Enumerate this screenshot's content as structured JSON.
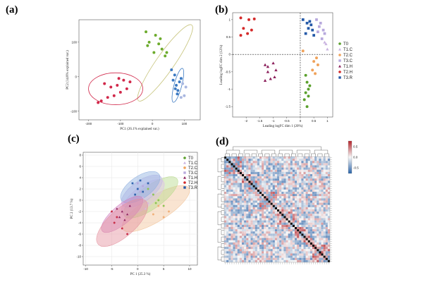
{
  "panels": {
    "a": "(a)",
    "b": "(b)",
    "c": "(c)",
    "d": "(d)"
  },
  "groups": [
    {
      "name": "T0",
      "color": "#5aa02c",
      "marker": "circle"
    },
    {
      "name": "T1.C",
      "color": "#c9b3e0",
      "marker": "triangle"
    },
    {
      "name": "T2.C",
      "color": "#f0a25a",
      "marker": "circle"
    },
    {
      "name": "T3.C",
      "color": "#b7a8dd",
      "marker": "square"
    },
    {
      "name": "T1.H",
      "color": "#8b1e5a",
      "marker": "triangle"
    },
    {
      "name": "T2.H",
      "color": "#d42a2a",
      "marker": "circle"
    },
    {
      "name": "T3.R",
      "color": "#2459a8",
      "marker": "square"
    }
  ],
  "chart_data": [
    {
      "id": "a",
      "type": "scatter",
      "xlabel": "PC1 (26.1% explained var.)",
      "ylabel": "PC2 (14.8% explained var.)",
      "xlim": [
        -230,
        150
      ],
      "ylim": [
        -125,
        165
      ],
      "xticks": [
        -200,
        -100,
        0,
        100
      ],
      "yticks": [
        -100,
        0,
        100
      ],
      "series": [
        {
          "name": "T1.H",
          "color": "#d1284a",
          "points": [
            [
              -150,
              -20
            ],
            [
              -130,
              -30
            ],
            [
              -110,
              -25
            ],
            [
              -90,
              -10
            ],
            [
              -100,
              -45
            ],
            [
              -140,
              -60
            ],
            [
              -120,
              -55
            ],
            [
              -160,
              -70
            ],
            [
              -170,
              -75
            ],
            [
              -70,
              -15
            ],
            [
              -80,
              -35
            ],
            [
              -105,
              -5
            ]
          ]
        },
        {
          "name": "T0",
          "color": "#6cab2c",
          "points": [
            [
              -20,
              130
            ],
            [
              10,
              120
            ],
            [
              -10,
              100
            ],
            [
              20,
              95
            ],
            [
              30,
              80
            ],
            [
              5,
              70
            ],
            [
              40,
              60
            ],
            [
              -15,
              90
            ],
            [
              25,
              110
            ],
            [
              45,
              70
            ]
          ]
        },
        {
          "name": "T3.R",
          "color": "#3b79c2",
          "points": [
            [
              60,
              20
            ],
            [
              70,
              5
            ],
            [
              65,
              -10
            ],
            [
              75,
              -25
            ],
            [
              80,
              -40
            ],
            [
              85,
              -15
            ],
            [
              90,
              -5
            ],
            [
              72,
              -35
            ],
            [
              78,
              -50
            ]
          ]
        },
        {
          "name": "T3.C",
          "color": "#a9b7e0",
          "points": [
            [
              95,
              -20
            ],
            [
              100,
              -55
            ],
            [
              90,
              -60
            ],
            [
              105,
              -30
            ]
          ]
        }
      ],
      "ellipses": [
        {
          "group": "T0",
          "color": "#c6c37a",
          "cx": 40,
          "cy": 40,
          "rx": 145,
          "ry": 28,
          "angle": -55
        },
        {
          "group": "T1.H",
          "color": "#d1284a",
          "cx": -115,
          "cy": -35,
          "rx": 85,
          "ry": 50,
          "angle": 0
        },
        {
          "group": "T3.R",
          "color": "#3b79c2",
          "cx": 80,
          "cy": -25,
          "rx": 55,
          "ry": 12,
          "angle": -75
        }
      ]
    },
    {
      "id": "b",
      "type": "scatter",
      "xlabel": "Leading logFC dim 1 (20%)",
      "ylabel": "Leading logFC dim 2 (12%)",
      "xlim": [
        -2.5,
        1.2
      ],
      "ylim": [
        -1.8,
        1.2
      ],
      "xticks": [
        -2.0,
        -1.5,
        -1.0,
        -0.5,
        0,
        0.5,
        1.0
      ],
      "yticks": [
        -1.5,
        -1.0,
        -0.5,
        0,
        0.5,
        1.0
      ],
      "series": [
        {
          "name": "T2.H",
          "color": "#d42a2a",
          "points": [
            [
              -2.2,
              1.05
            ],
            [
              -1.9,
              1.0
            ],
            [
              -1.7,
              1.02
            ],
            [
              -2.1,
              0.75
            ],
            [
              -1.8,
              0.7
            ],
            [
              -1.95,
              0.6
            ],
            [
              -2.2,
              0.55
            ]
          ]
        },
        {
          "name": "T1.H",
          "color": "#8b1e5a",
          "points": [
            [
              -1.3,
              -0.3
            ],
            [
              -1.0,
              -0.25
            ],
            [
              -1.2,
              -0.5
            ],
            [
              -0.9,
              -0.45
            ],
            [
              -1.1,
              -0.7
            ],
            [
              -1.3,
              -0.75
            ],
            [
              -0.95,
              -0.65
            ],
            [
              -1.2,
              -0.35
            ]
          ]
        },
        {
          "name": "T3.R",
          "color": "#2459a8",
          "points": [
            [
              0.1,
              1.0
            ],
            [
              0.25,
              0.9
            ],
            [
              0.4,
              0.85
            ],
            [
              0.3,
              0.75
            ],
            [
              0.2,
              0.6
            ],
            [
              0.45,
              0.7
            ],
            [
              0.5,
              0.55
            ],
            [
              0.35,
              0.95
            ]
          ]
        },
        {
          "name": "T3.C",
          "color": "#b7a8dd",
          "points": [
            [
              0.6,
              1.0
            ],
            [
              0.75,
              0.9
            ],
            [
              0.7,
              0.8
            ],
            [
              0.85,
              0.7
            ],
            [
              0.65,
              0.65
            ],
            [
              0.9,
              0.6
            ],
            [
              0.8,
              0.45
            ]
          ]
        },
        {
          "name": "T1.C",
          "color": "#c9b3e0",
          "points": [
            [
              0.95,
              0.3
            ],
            [
              1.0,
              0.15
            ],
            [
              0.9,
              0.35
            ]
          ]
        },
        {
          "name": "T2.C",
          "color": "#f0a25a",
          "points": [
            [
              0.5,
              -0.2
            ],
            [
              0.6,
              -0.1
            ],
            [
              0.65,
              -0.3
            ],
            [
              0.45,
              -0.45
            ],
            [
              0.55,
              -0.55
            ],
            [
              0.1,
              0.1
            ]
          ]
        },
        {
          "name": "T0",
          "color": "#5aa02c",
          "points": [
            [
              0.2,
              -0.6
            ],
            [
              0.25,
              -0.8
            ],
            [
              0.3,
              -1.0
            ],
            [
              0.2,
              -1.1
            ],
            [
              0.15,
              -1.3
            ],
            [
              0.25,
              -1.5
            ],
            [
              0.35,
              -0.9
            ],
            [
              0.3,
              -1.2
            ]
          ]
        }
      ]
    },
    {
      "id": "c",
      "type": "scatter",
      "xlabel": "PC 1 (25.3 %)",
      "ylabel": "PC 2 (13.7 %)",
      "xlim": [
        -10.5,
        11.5
      ],
      "ylim": [
        -11.5,
        8.5
      ],
      "xticks": [
        -10,
        -5,
        0,
        5,
        10
      ],
      "yticks": [
        -10,
        -8,
        -6,
        -4,
        -2,
        0,
        2,
        4,
        6,
        8
      ],
      "series": [
        {
          "name": "T0",
          "color": "#8fc454",
          "points": [
            [
              2,
              2
            ],
            [
              3,
              1
            ],
            [
              4,
              0
            ],
            [
              5,
              -1
            ],
            [
              3.5,
              -0.5
            ]
          ]
        },
        {
          "name": "T1.C",
          "color": "#d9b4e0",
          "points": [
            [
              1,
              0.5
            ],
            [
              2,
              -0.5
            ],
            [
              1.5,
              -1.5
            ]
          ]
        },
        {
          "name": "T2.C",
          "color": "#f0b07a",
          "points": [
            [
              4,
              -1
            ],
            [
              6,
              -2
            ],
            [
              5,
              -3
            ],
            [
              3,
              -2.5
            ]
          ]
        },
        {
          "name": "T3.C",
          "color": "#b7a8dd",
          "points": [
            [
              0,
              3
            ],
            [
              1,
              2.5
            ],
            [
              0.5,
              1.5
            ]
          ]
        },
        {
          "name": "T1.H",
          "color": "#8b1e5a",
          "points": [
            [
              -4,
              -1.5
            ],
            [
              -3,
              -2
            ],
            [
              -2,
              -2.5
            ],
            [
              -3.5,
              -3
            ],
            [
              -2.5,
              -3.5
            ],
            [
              -1.5,
              -1
            ]
          ]
        },
        {
          "name": "T2.H",
          "color": "#c9304a",
          "points": [
            [
              -5,
              -2
            ],
            [
              -4.5,
              -4
            ],
            [
              -3,
              -5
            ],
            [
              -2,
              -6
            ],
            [
              -4,
              -3
            ]
          ]
        },
        {
          "name": "T3.R",
          "color": "#3466b0",
          "points": [
            [
              -1,
              3
            ],
            [
              0,
              2
            ],
            [
              1,
              1.5
            ],
            [
              -0.5,
              1
            ],
            [
              0.5,
              3.5
            ],
            [
              2,
              3
            ]
          ]
        }
      ],
      "ellipses": [
        {
          "group": "T2.C",
          "color": "#f2c49a",
          "cx": 3.5,
          "cy": -1.5,
          "rx": 7.5,
          "ry": 2.4,
          "angle": -32
        },
        {
          "group": "T0",
          "color": "#b6d98a",
          "cx": 2.5,
          "cy": 0.5,
          "rx": 6.2,
          "ry": 2.2,
          "angle": -35
        },
        {
          "group": "T1.C",
          "color": "#e0c2ea",
          "cx": 1,
          "cy": 0.5,
          "rx": 5.0,
          "ry": 2.0,
          "angle": -38
        },
        {
          "group": "T3.C",
          "color": "#c4b9e6",
          "cx": 0.8,
          "cy": 1.6,
          "rx": 4.6,
          "ry": 2.0,
          "angle": -35
        },
        {
          "group": "T3.R",
          "color": "#8fb0e0",
          "cx": 0.5,
          "cy": 2.3,
          "rx": 4.4,
          "ry": 2.1,
          "angle": -35
        },
        {
          "group": "T1.H",
          "color": "#d07fbf",
          "cx": -3,
          "cy": -2.5,
          "rx": 5.0,
          "ry": 1.8,
          "angle": -40
        },
        {
          "group": "T2.H",
          "color": "#e5919e",
          "cx": -3,
          "cy": -4,
          "rx": 6.2,
          "ry": 2.6,
          "angle": -42
        }
      ]
    },
    {
      "id": "d",
      "type": "heatmap",
      "size": 48,
      "colorbar": {
        "ticks": [
          "0.5",
          "0.0",
          "-0.5"
        ],
        "low": "#2a63a8",
        "mid": "#f7f7f7",
        "high": "#b3242b"
      }
    }
  ]
}
